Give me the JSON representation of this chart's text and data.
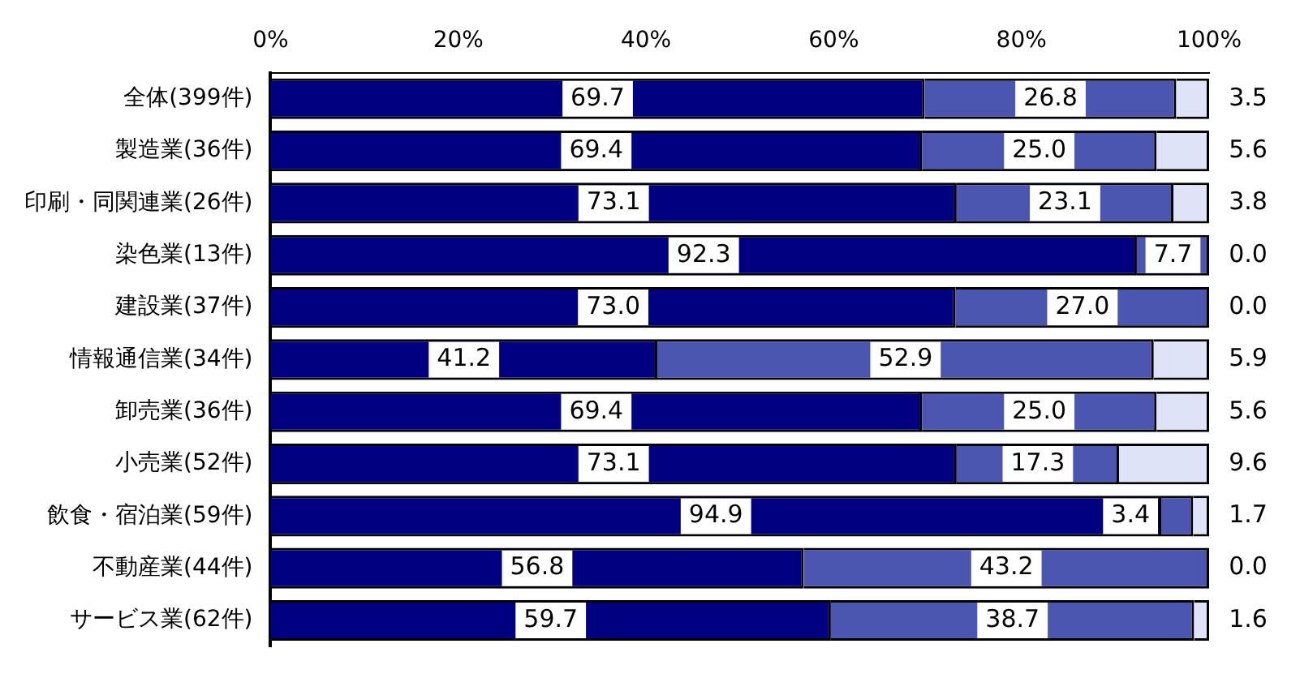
{
  "chart_data": {
    "type": "bar",
    "orientation": "horizontal",
    "stacked": true,
    "grid": false,
    "legend": false,
    "categories": [
      "全体(399件)",
      "製造業(36件)",
      "印刷・同関連業(26件)",
      "染色業(13件)",
      "建設業(37件)",
      "情報通信業(34件)",
      "卸売業(36件)",
      "小売業(52件)",
      "飲食・宿泊業(59件)",
      "不動産業(44件)",
      "サービス業(62件)"
    ],
    "xlim": [
      0,
      100
    ],
    "xticks": [
      {
        "value": 0,
        "label": "0%"
      },
      {
        "value": 20,
        "label": "20%"
      },
      {
        "value": 40,
        "label": "40%"
      },
      {
        "value": 60,
        "label": "60%"
      },
      {
        "value": 80,
        "label": "80%"
      },
      {
        "value": 100,
        "label": "100%"
      }
    ],
    "series": [
      {
        "color": "#000080",
        "values": [
          69.7,
          69.4,
          73.1,
          92.3,
          73.0,
          41.2,
          69.4,
          73.1,
          94.9,
          56.8,
          59.7
        ],
        "value_labels": [
          "69.7",
          "69.4",
          "73.1",
          "92.3",
          "73.0",
          "41.2",
          "69.4",
          "73.1",
          "94.9",
          "56.8",
          "59.7"
        ]
      },
      {
        "color": "#4a56b0",
        "values": [
          26.8,
          25.0,
          23.1,
          7.7,
          27.0,
          52.9,
          25.0,
          17.3,
          3.4,
          43.2,
          38.7
        ],
        "value_labels": [
          "26.8",
          "25.0",
          "23.1",
          "7.7",
          "27.0",
          "52.9",
          "25.0",
          "17.3",
          "3.4",
          "43.2",
          "38.7"
        ]
      },
      {
        "color": "#dfe3f7",
        "values": [
          3.5,
          5.6,
          3.8,
          0.0,
          0.0,
          5.9,
          5.6,
          9.6,
          1.7,
          0.0,
          1.6
        ],
        "value_labels": [
          "3.5",
          "5.6",
          "3.8",
          "0.0",
          "0.0",
          "5.9",
          "5.6",
          "9.6",
          "1.7",
          "0.0",
          "1.6"
        ]
      }
    ]
  }
}
